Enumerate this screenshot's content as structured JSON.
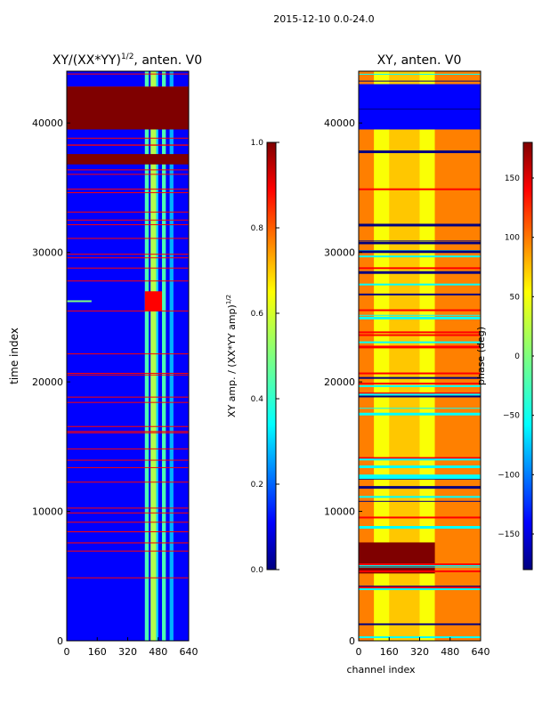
{
  "figure": {
    "suptitle": "2015-12-10 0.0-24.0"
  },
  "chart_data": [
    {
      "type": "heatmap",
      "title": "XY/(XX*YY)$^{1/2}$, anten. V0",
      "title_main": "XY/(XX*YY)",
      "title_sup": "1/2",
      "title_tail": ", anten. V0",
      "xlabel": "",
      "ylabel": "time index",
      "xlim": [
        0,
        640
      ],
      "ylim": [
        0,
        44000
      ],
      "xticks": [
        0,
        160,
        320,
        480,
        640
      ],
      "yticks": [
        0,
        10000,
        20000,
        30000,
        40000
      ],
      "colormap": "jet",
      "colorbar": {
        "label": "XY amp. / (XX*YY amp)$^{1/2}$",
        "label_main": "XY amp. / (XX*YY amp)",
        "label_sup": "1/2",
        "vmin": 0.0,
        "vmax": 1.0,
        "ticks": [
          0.0,
          0.2,
          0.4,
          0.6,
          0.8,
          1.0
        ],
        "tick_labels": [
          "0.0",
          "0.2",
          "0.4",
          "0.6",
          "0.8",
          "1.0"
        ]
      }
    },
    {
      "type": "heatmap",
      "title": "XY, anten. V0",
      "xlabel": "channel index",
      "ylabel": "",
      "xlim": [
        0,
        640
      ],
      "ylim": [
        0,
        44000
      ],
      "xticks": [
        0,
        160,
        320,
        480,
        640
      ],
      "yticks": [
        0,
        10000,
        20000,
        30000,
        40000
      ],
      "colormap": "jet",
      "colorbar": {
        "label": "phase (deg)",
        "vmin": -180,
        "vmax": 180,
        "ticks": [
          -150,
          -100,
          -50,
          0,
          50,
          100,
          150
        ],
        "tick_labels": [
          "−150",
          "−100",
          "−50",
          "0",
          "50",
          "100",
          "150"
        ]
      }
    }
  ],
  "colors": {
    "jet_0": "#00007f",
    "jet_1": "#0000ff",
    "jet_2": "#007fff",
    "jet_3": "#00ffff",
    "jet_4": "#7fff7f",
    "jet_5": "#ffff00",
    "jet_6": "#ff7f00",
    "jet_7": "#ff0000",
    "jet_8": "#7f0000"
  }
}
